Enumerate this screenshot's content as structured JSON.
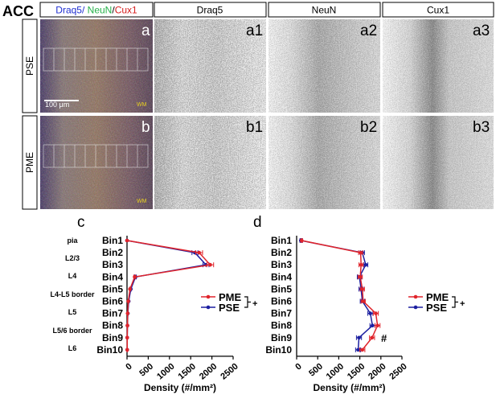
{
  "figure": {
    "region_label": "ACC",
    "header": {
      "merged": [
        "Draq5/",
        " NeuN",
        "/",
        "Cux1"
      ],
      "col1": "Draq5",
      "col2": "NeuN",
      "col3": "Cux1"
    },
    "rows": [
      {
        "label": "PSE",
        "panels": [
          "a",
          "a1",
          "a2",
          "a3"
        ],
        "scale_bar": "100 μm",
        "wm": "WM"
      },
      {
        "label": "PME",
        "panels": [
          "b",
          "b1",
          "b2",
          "b3"
        ],
        "wm": "WM"
      }
    ],
    "colors": {
      "draq5": "#1f2fd1",
      "neun": "#26b24a",
      "cux1": "#d62020",
      "pme": "#e0242b",
      "pse": "#1c1fa0"
    }
  },
  "chart_data": [
    {
      "panel": "c",
      "type": "line",
      "categories": [
        "Bin1",
        "Bin2",
        "Bin3",
        "Bin4",
        "Bin5",
        "Bin6",
        "Bin7",
        "Bin8",
        "Bin9",
        "Bin10"
      ],
      "layers": [
        "pia",
        "L2/3",
        "L4",
        "L4-L5 border",
        "L5",
        "L5/6 border",
        "L6"
      ],
      "xlabel": "Density (#/mm²)",
      "xticks": [
        0,
        500,
        1000,
        1500,
        2000,
        2500
      ],
      "xlim": [
        0,
        2500
      ],
      "legend_position": "right",
      "significance": "+",
      "series": [
        {
          "name": "PME",
          "color": "#e0242b",
          "values": [
            0,
            1700,
            1960,
            180,
            70,
            30,
            15,
            10,
            5,
            5
          ],
          "errors": [
            0,
            80,
            80,
            20,
            10,
            5,
            5,
            5,
            5,
            5
          ]
        },
        {
          "name": "PSE",
          "color": "#1c1fa0",
          "values": [
            0,
            1600,
            1860,
            200,
            90,
            40,
            20,
            10,
            5,
            5
          ],
          "errors": [
            0,
            70,
            70,
            20,
            10,
            5,
            5,
            5,
            5,
            5
          ]
        }
      ]
    },
    {
      "panel": "d",
      "type": "line",
      "categories": [
        "Bin1",
        "Bin2",
        "Bin3",
        "Bin4",
        "Bin5",
        "Bin6",
        "Bin7",
        "Bin8",
        "Bin9",
        "Bin10"
      ],
      "xlabel": "Density (#/mm²)",
      "xticks": [
        0,
        500,
        1000,
        1500,
        2000,
        2500
      ],
      "xlim": [
        0,
        2500
      ],
      "legend_position": "right",
      "significance": "+",
      "annotations": [
        {
          "category": "Bin9",
          "text": "#"
        }
      ],
      "series": [
        {
          "name": "PME",
          "color": "#e0242b",
          "values": [
            120,
            1520,
            1530,
            1510,
            1560,
            1580,
            1880,
            1920,
            1790,
            1560
          ],
          "errors": [
            20,
            50,
            50,
            50,
            50,
            50,
            60,
            60,
            60,
            60
          ]
        },
        {
          "name": "PSE",
          "color": "#1c1fa0",
          "values": [
            100,
            1560,
            1640,
            1490,
            1530,
            1560,
            1750,
            1800,
            1480,
            1460
          ],
          "errors": [
            20,
            50,
            50,
            50,
            50,
            50,
            60,
            60,
            60,
            60
          ]
        }
      ]
    }
  ]
}
